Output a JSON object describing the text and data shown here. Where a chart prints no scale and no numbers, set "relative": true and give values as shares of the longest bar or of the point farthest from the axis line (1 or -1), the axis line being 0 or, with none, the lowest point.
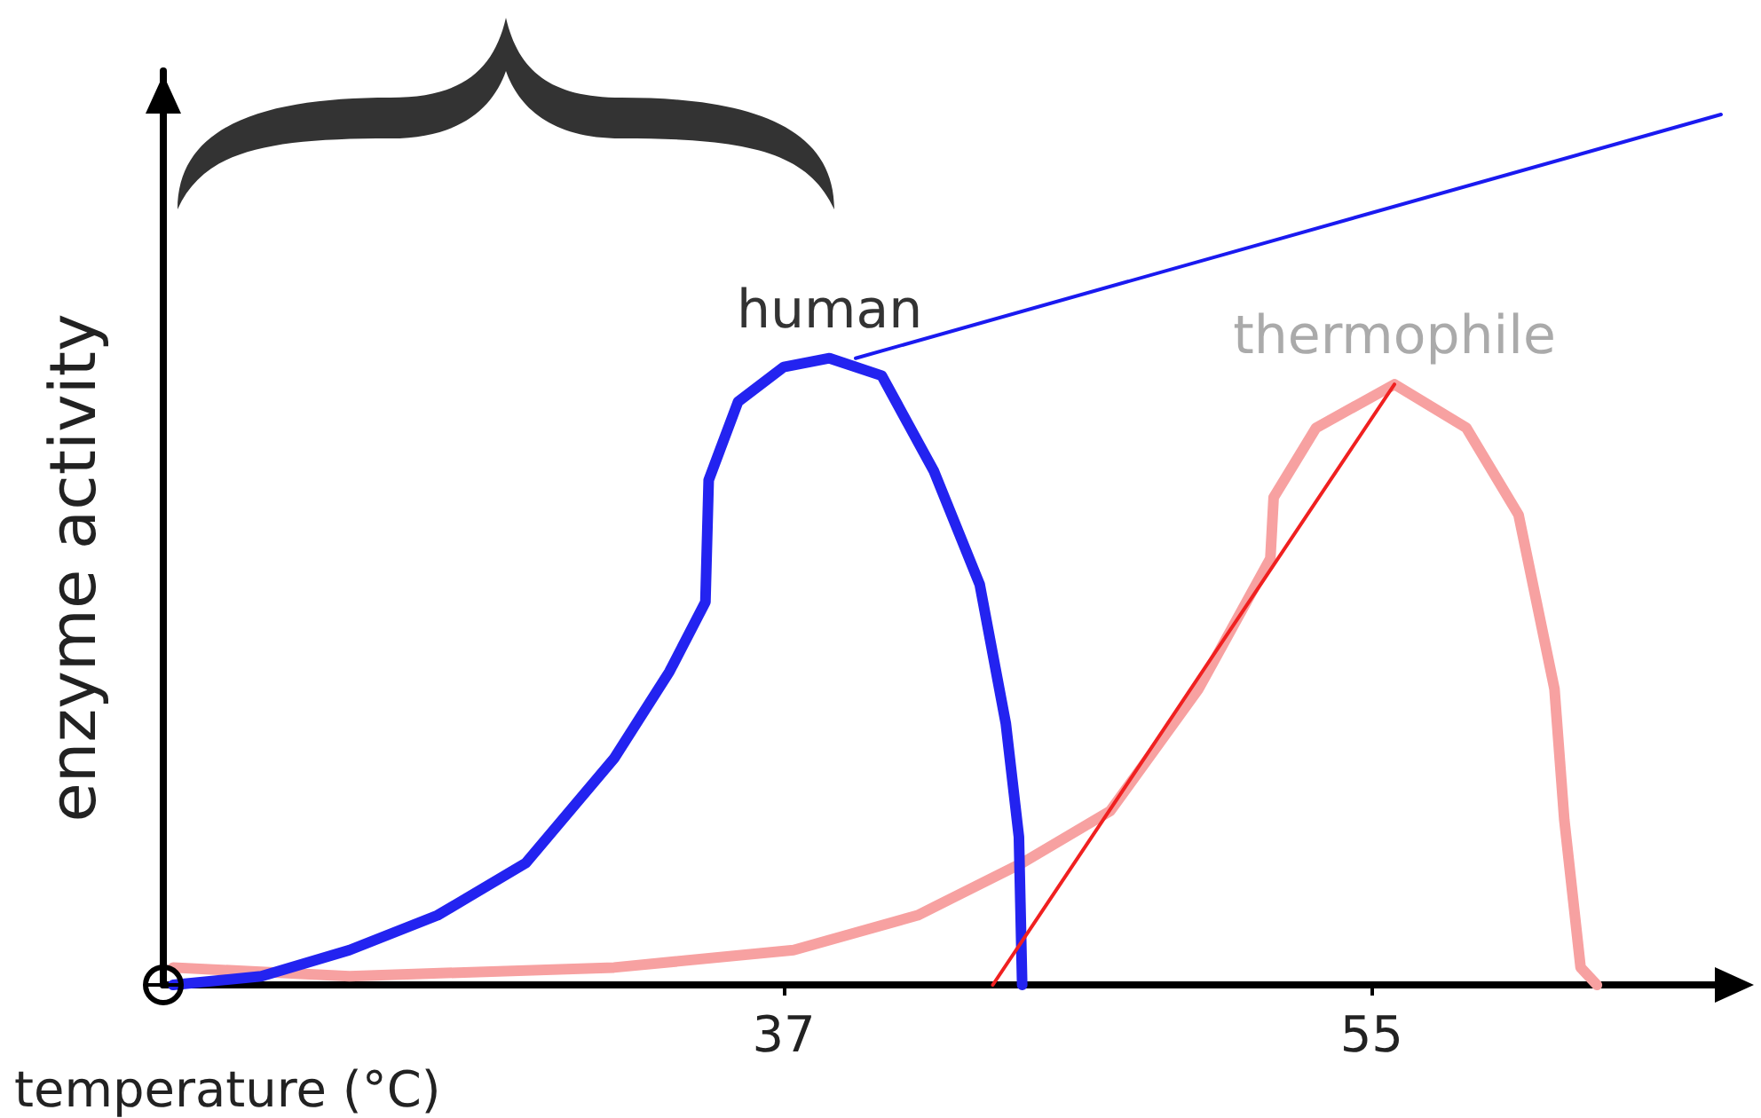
{
  "chart_data": {
    "type": "line",
    "relative": true,
    "xlabel": "temperature (°C)",
    "ylabel": "enzyme activity",
    "xlim": [
      18,
      66
    ],
    "xticks": [
      37,
      55
    ],
    "grid": false,
    "legend": false,
    "marker": "none",
    "line_style": "solid",
    "series": [
      {
        "name": "human",
        "color": "#2323f0",
        "x": [
          18.3,
          21.0,
          23.7,
          26.4,
          29.1,
          31.8,
          33.5,
          34.6,
          34.7,
          35.6,
          37.0,
          38.4,
          40.0,
          41.6,
          43.0,
          43.8,
          44.2,
          44.3
        ],
        "values": [
          0,
          0.01,
          0.04,
          0.08,
          0.14,
          0.26,
          0.36,
          0.44,
          0.58,
          0.67,
          0.71,
          0.72,
          0.7,
          0.59,
          0.46,
          0.3,
          0.17,
          0
        ]
      },
      {
        "name": "thermophile",
        "color": "#f7a1a1",
        "x": [
          18.3,
          23.7,
          31.8,
          37.3,
          41.1,
          44.3,
          47.0,
          49.7,
          51.9,
          52.0,
          53.3,
          55.7,
          57.9,
          59.5,
          60.6,
          60.9,
          61.4,
          61.9
        ],
        "values": [
          0.02,
          0.01,
          0.02,
          0.04,
          0.08,
          0.14,
          0.2,
          0.34,
          0.49,
          0.56,
          0.64,
          0.69,
          0.64,
          0.54,
          0.34,
          0.19,
          0.02,
          0
        ]
      },
      {
        "color": "#1a1af0",
        "x": [
          39.2,
          65.7
        ],
        "values": [
          0.72,
          1
        ]
      },
      {
        "color": "#f02020",
        "x": [
          43.4,
          55.7
        ],
        "values": [
          0,
          0.69
        ]
      }
    ]
  }
}
